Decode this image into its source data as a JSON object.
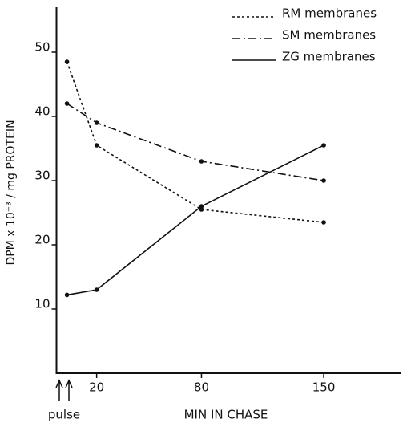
{
  "chart_data": {
    "type": "line",
    "x_label": "MIN IN CHASE",
    "y_label": "DPM x 10⁻³ / mg PROTEIN",
    "annotation": "pulse",
    "x": [
      3,
      20,
      80,
      150
    ],
    "series": [
      {
        "name": "RM membranes",
        "color": "#111111",
        "linestyle": "dotted",
        "values": [
          48.5,
          35.5,
          25.5,
          23.5
        ]
      },
      {
        "name": "SM membranes",
        "color": "#111111",
        "linestyle": "dashdot",
        "values": [
          42,
          39,
          33,
          30
        ]
      },
      {
        "name": "ZG membranes",
        "color": "#111111",
        "linestyle": "solid",
        "values": [
          12.2,
          13,
          26,
          35.5
        ]
      }
    ],
    "xlim": [
      -3,
      194
    ],
    "xticks": [
      20,
      80,
      150
    ],
    "ylim": [
      0,
      57
    ],
    "yticks": [
      10,
      20,
      30,
      40,
      50
    ],
    "legend": "upper right"
  }
}
